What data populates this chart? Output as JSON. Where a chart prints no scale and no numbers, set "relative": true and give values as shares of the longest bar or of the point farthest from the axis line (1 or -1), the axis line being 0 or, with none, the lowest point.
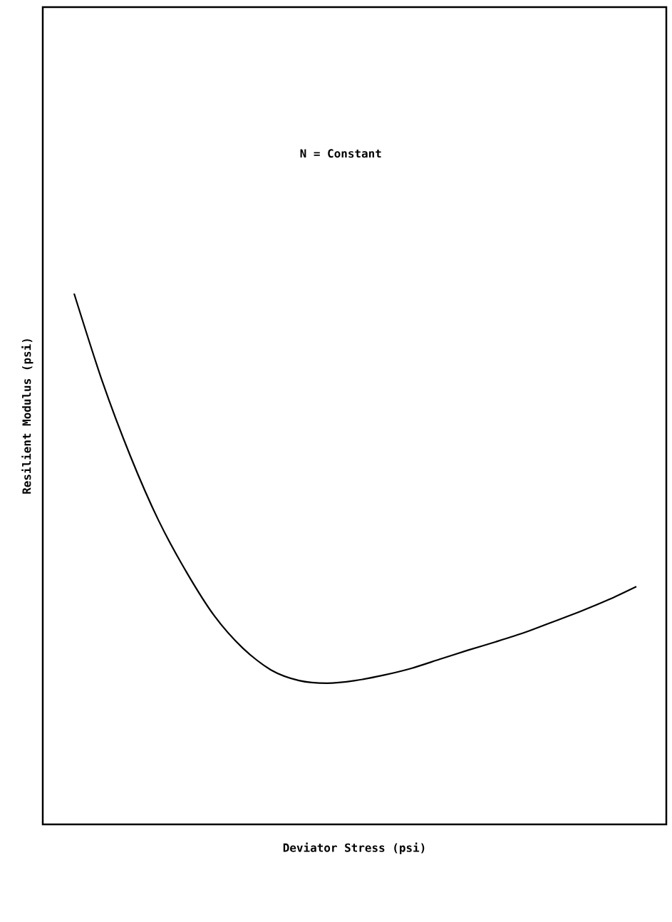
{
  "chart_data": {
    "type": "line",
    "relative": true,
    "xlabel": "Deviator Stress (psi)",
    "ylabel": "Resilient Modulus (psi)",
    "annotations": [
      "N = Constant"
    ],
    "categories": [
      null,
      null,
      null,
      null,
      null,
      null,
      null,
      null,
      null,
      null,
      null,
      null,
      null,
      null,
      null,
      null,
      null,
      null,
      null,
      null,
      null
    ],
    "series": [
      {
        "color": "#000000",
        "values": [
          1,
          0.835,
          0.694,
          0.573,
          0.475,
          0.392,
          0.332,
          0.291,
          0.271,
          0.266,
          0.271,
          0.281,
          0.294,
          0.311,
          0.328,
          0.344,
          0.361,
          0.381,
          0.401,
          0.423,
          0.448
        ]
      }
    ]
  }
}
